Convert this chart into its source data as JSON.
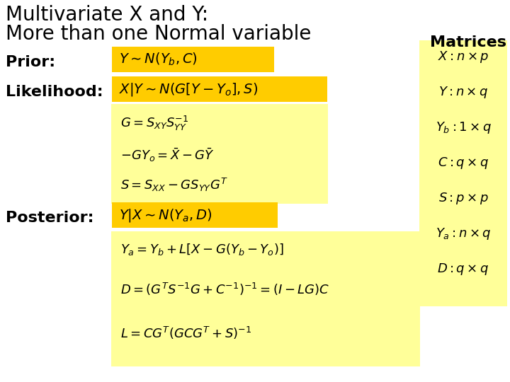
{
  "bg_color": "#ffffff",
  "title_line1": "Multivariate X and Y:",
  "title_line2": "More than one Normal variable",
  "title_fontsize": 20,
  "title_color": "#000000",
  "matrices_label": "Matrices",
  "matrices_fontsize": 16,
  "prior_label": "Prior:",
  "likelihood_label": "Likelihood:",
  "posterior_label": "Posterior:",
  "label_fontsize": 16,
  "label_color": "#000000",
  "yellow_bright": "#ffcc00",
  "yellow_light": "#ffff99",
  "formula_color": "#000000",
  "black_color": "#000000",
  "formula_fontsize": 13,
  "highlight_formula_fontsize": 14
}
